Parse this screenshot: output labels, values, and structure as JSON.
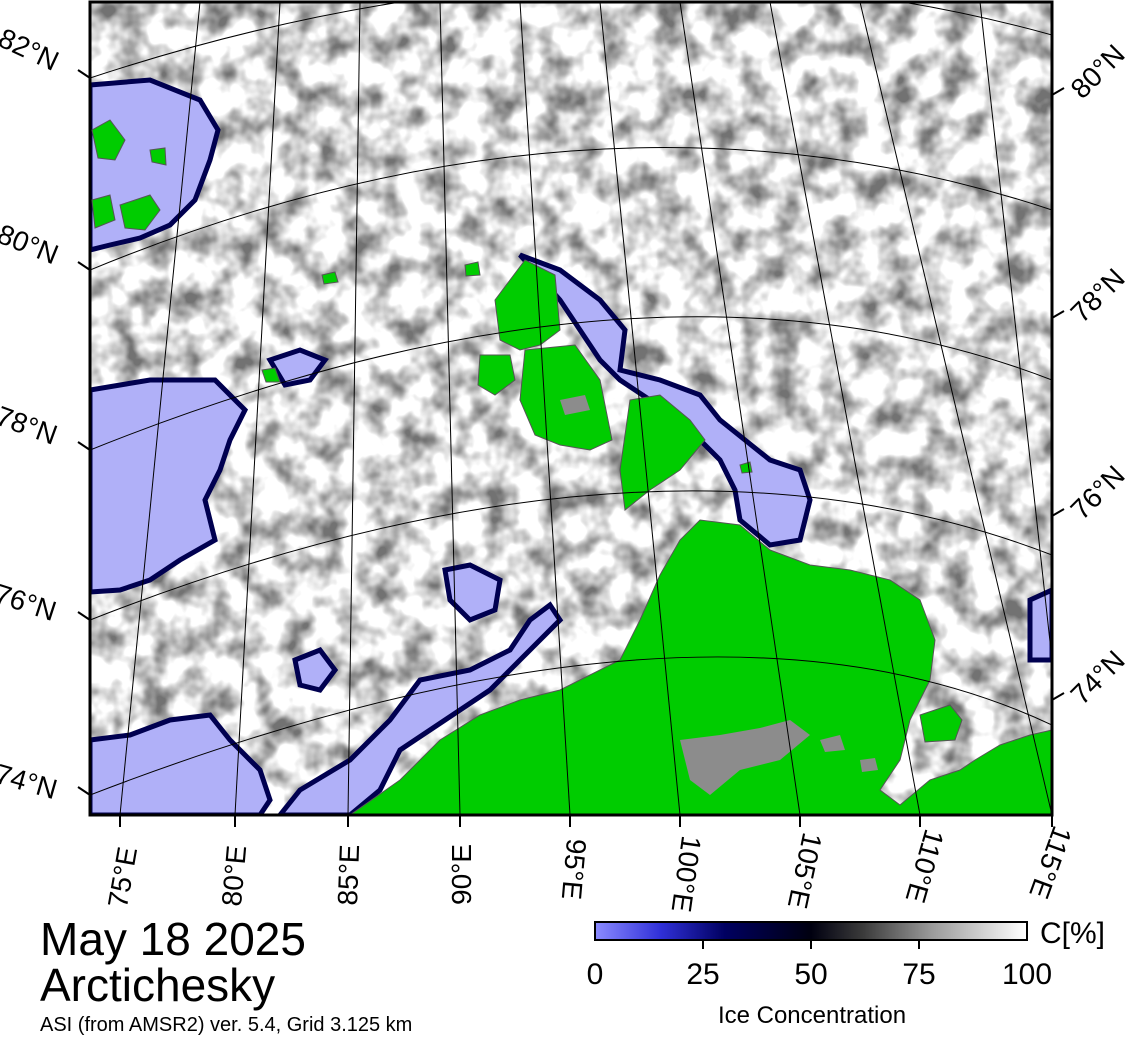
{
  "map": {
    "colors": {
      "land": "#00cc00",
      "open_water": "#b0b0f8",
      "ice_high": "#ffffff",
      "ice_edge": "#000060",
      "land_ice": "#8c8c8c"
    },
    "lat_labels_left": [
      "82°N",
      "80°N",
      "78°N",
      "76°N",
      "74°N"
    ],
    "lat_labels_right": [
      "80°N",
      "78°N",
      "76°N",
      "74°N"
    ],
    "lon_labels": [
      "75°E",
      "80°E",
      "85°E",
      "90°E",
      "95°E",
      "100°E",
      "105°E",
      "110°E",
      "115°E"
    ]
  },
  "caption": {
    "date": "May 18 2025",
    "region": "Arctichesky",
    "source": "ASI (from AMSR2) ver. 5.4,  Grid 3.125 km"
  },
  "colorbar": {
    "unit": "C[%]",
    "title": "Ice Concentration",
    "ticks": [
      "0",
      "25",
      "50",
      "75",
      "100"
    ]
  }
}
